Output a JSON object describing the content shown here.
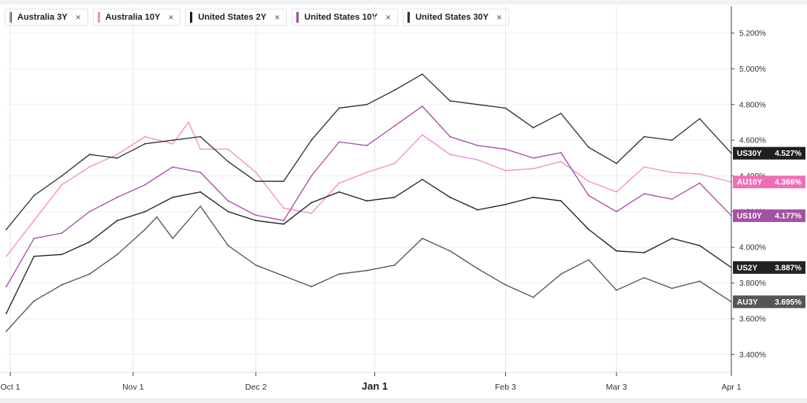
{
  "legend": [
    {
      "label": "Australia 3Y",
      "color": "#555555"
    },
    {
      "label": "Australia 10Y",
      "color": "#f28fc9"
    },
    {
      "label": "United States 2Y",
      "color": "#222222"
    },
    {
      "label": "United States 10Y",
      "color": "#a352a3"
    },
    {
      "label": "United States 30Y",
      "color": "#333333"
    }
  ],
  "close_glyph": "×",
  "chart_data": {
    "type": "line",
    "x_axis": {
      "range": [
        "2024-09-30",
        "2025-04-01"
      ],
      "ticks": [
        {
          "date": "2024-10-01",
          "label": "Oct 1"
        },
        {
          "date": "2024-11-01",
          "label": "Nov 1"
        },
        {
          "date": "2024-12-02",
          "label": "Dec 2"
        },
        {
          "date": "2025-01-01",
          "label": "Jan 1"
        },
        {
          "date": "2025-02-03",
          "label": "Feb 3"
        },
        {
          "date": "2025-03-03",
          "label": "Mar 3"
        },
        {
          "date": "2025-04-01",
          "label": "Apr 1"
        }
      ]
    },
    "y_axis": {
      "range": [
        3.3,
        5.35
      ],
      "ticks": [
        3.4,
        3.6,
        3.8,
        4.0,
        4.2,
        4.4,
        4.6,
        4.8,
        5.0,
        5.2
      ],
      "tick_labels": [
        "3.400%",
        "3.600%",
        "3.800%",
        "4.000%",
        "4.200%",
        "4.400%",
        "4.600%",
        "4.800%",
        "5.000%",
        "5.200%"
      ],
      "position": "right",
      "grid": true
    },
    "series": [
      {
        "name": "Australia 3Y",
        "tag": "AU3Y",
        "last_label": "3.695%",
        "color": "#555555",
        "tag_color": "#555555",
        "points": [
          [
            "2024-09-30",
            3.53
          ],
          [
            "2024-10-07",
            3.7
          ],
          [
            "2024-10-14",
            3.79
          ],
          [
            "2024-10-21",
            3.85
          ],
          [
            "2024-10-28",
            3.96
          ],
          [
            "2024-11-04",
            4.1
          ],
          [
            "2024-11-07",
            4.17
          ],
          [
            "2024-11-11",
            4.05
          ],
          [
            "2024-11-18",
            4.23
          ],
          [
            "2024-11-25",
            4.01
          ],
          [
            "2024-12-02",
            3.9
          ],
          [
            "2024-12-09",
            3.84
          ],
          [
            "2024-12-16",
            3.78
          ],
          [
            "2024-12-23",
            3.85
          ],
          [
            "2024-12-30",
            3.87
          ],
          [
            "2025-01-06",
            3.9
          ],
          [
            "2025-01-13",
            4.05
          ],
          [
            "2025-01-20",
            3.98
          ],
          [
            "2025-01-27",
            3.88
          ],
          [
            "2025-02-03",
            3.79
          ],
          [
            "2025-02-10",
            3.72
          ],
          [
            "2025-02-17",
            3.85
          ],
          [
            "2025-02-24",
            3.93
          ],
          [
            "2025-03-03",
            3.76
          ],
          [
            "2025-03-10",
            3.83
          ],
          [
            "2025-03-17",
            3.77
          ],
          [
            "2025-03-24",
            3.81
          ],
          [
            "2025-04-01",
            3.695
          ]
        ]
      },
      {
        "name": "Australia 10Y",
        "tag": "AU10Y",
        "last_label": "4.366%",
        "color": "#f28fc9",
        "tag_color": "#ef6fb5",
        "points": [
          [
            "2024-09-30",
            3.95
          ],
          [
            "2024-10-07",
            4.15
          ],
          [
            "2024-10-14",
            4.35
          ],
          [
            "2024-10-21",
            4.45
          ],
          [
            "2024-10-28",
            4.52
          ],
          [
            "2024-11-04",
            4.62
          ],
          [
            "2024-11-11",
            4.58
          ],
          [
            "2024-11-15",
            4.7
          ],
          [
            "2024-11-18",
            4.55
          ],
          [
            "2024-11-25",
            4.55
          ],
          [
            "2024-12-02",
            4.42
          ],
          [
            "2024-12-09",
            4.22
          ],
          [
            "2024-12-16",
            4.19
          ],
          [
            "2024-12-23",
            4.36
          ],
          [
            "2024-12-30",
            4.42
          ],
          [
            "2025-01-06",
            4.47
          ],
          [
            "2025-01-13",
            4.63
          ],
          [
            "2025-01-20",
            4.52
          ],
          [
            "2025-01-27",
            4.49
          ],
          [
            "2025-02-03",
            4.43
          ],
          [
            "2025-02-10",
            4.44
          ],
          [
            "2025-02-17",
            4.48
          ],
          [
            "2025-02-24",
            4.37
          ],
          [
            "2025-03-03",
            4.31
          ],
          [
            "2025-03-10",
            4.45
          ],
          [
            "2025-03-17",
            4.42
          ],
          [
            "2025-03-24",
            4.41
          ],
          [
            "2025-04-01",
            4.366
          ]
        ]
      },
      {
        "name": "United States 2Y",
        "tag": "US2Y",
        "last_label": "3.887%",
        "color": "#222222",
        "tag_color": "#222222",
        "points": [
          [
            "2024-09-30",
            3.63
          ],
          [
            "2024-10-07",
            3.95
          ],
          [
            "2024-10-14",
            3.96
          ],
          [
            "2024-10-21",
            4.03
          ],
          [
            "2024-10-28",
            4.15
          ],
          [
            "2024-11-04",
            4.2
          ],
          [
            "2024-11-11",
            4.28
          ],
          [
            "2024-11-18",
            4.31
          ],
          [
            "2024-11-25",
            4.2
          ],
          [
            "2024-12-02",
            4.15
          ],
          [
            "2024-12-09",
            4.13
          ],
          [
            "2024-12-16",
            4.25
          ],
          [
            "2024-12-23",
            4.31
          ],
          [
            "2024-12-30",
            4.26
          ],
          [
            "2025-01-06",
            4.28
          ],
          [
            "2025-01-13",
            4.38
          ],
          [
            "2025-01-20",
            4.28
          ],
          [
            "2025-01-27",
            4.21
          ],
          [
            "2025-02-03",
            4.24
          ],
          [
            "2025-02-10",
            4.28
          ],
          [
            "2025-02-17",
            4.26
          ],
          [
            "2025-02-24",
            4.1
          ],
          [
            "2025-03-03",
            3.98
          ],
          [
            "2025-03-10",
            3.97
          ],
          [
            "2025-03-17",
            4.05
          ],
          [
            "2025-03-24",
            4.01
          ],
          [
            "2025-04-01",
            3.887
          ]
        ]
      },
      {
        "name": "United States 10Y",
        "tag": "US10Y",
        "last_label": "4.177%",
        "color": "#a352a3",
        "tag_color": "#a352a3",
        "points": [
          [
            "2024-09-30",
            3.78
          ],
          [
            "2024-10-07",
            4.05
          ],
          [
            "2024-10-14",
            4.08
          ],
          [
            "2024-10-21",
            4.2
          ],
          [
            "2024-10-28",
            4.28
          ],
          [
            "2024-11-04",
            4.35
          ],
          [
            "2024-11-11",
            4.45
          ],
          [
            "2024-11-18",
            4.42
          ],
          [
            "2024-11-25",
            4.26
          ],
          [
            "2024-12-02",
            4.18
          ],
          [
            "2024-12-09",
            4.15
          ],
          [
            "2024-12-16",
            4.4
          ],
          [
            "2024-12-23",
            4.59
          ],
          [
            "2024-12-30",
            4.57
          ],
          [
            "2025-01-06",
            4.68
          ],
          [
            "2025-01-13",
            4.79
          ],
          [
            "2025-01-20",
            4.62
          ],
          [
            "2025-01-27",
            4.57
          ],
          [
            "2025-02-03",
            4.55
          ],
          [
            "2025-02-10",
            4.5
          ],
          [
            "2025-02-17",
            4.53
          ],
          [
            "2025-02-24",
            4.29
          ],
          [
            "2025-03-03",
            4.2
          ],
          [
            "2025-03-10",
            4.3
          ],
          [
            "2025-03-17",
            4.27
          ],
          [
            "2025-03-24",
            4.36
          ],
          [
            "2025-04-01",
            4.177
          ]
        ]
      },
      {
        "name": "United States 30Y",
        "tag": "US30Y",
        "last_label": "4.527%",
        "color": "#333333",
        "tag_color": "#1f1f1f",
        "points": [
          [
            "2024-09-30",
            4.1
          ],
          [
            "2024-10-07",
            4.29
          ],
          [
            "2024-10-14",
            4.4
          ],
          [
            "2024-10-21",
            4.52
          ],
          [
            "2024-10-28",
            4.5
          ],
          [
            "2024-11-04",
            4.58
          ],
          [
            "2024-11-11",
            4.6
          ],
          [
            "2024-11-18",
            4.62
          ],
          [
            "2024-11-25",
            4.48
          ],
          [
            "2024-12-02",
            4.37
          ],
          [
            "2024-12-09",
            4.37
          ],
          [
            "2024-12-16",
            4.6
          ],
          [
            "2024-12-23",
            4.78
          ],
          [
            "2024-12-30",
            4.8
          ],
          [
            "2025-01-06",
            4.88
          ],
          [
            "2025-01-13",
            4.97
          ],
          [
            "2025-01-20",
            4.82
          ],
          [
            "2025-01-27",
            4.8
          ],
          [
            "2025-02-03",
            4.78
          ],
          [
            "2025-02-10",
            4.67
          ],
          [
            "2025-02-17",
            4.75
          ],
          [
            "2025-02-24",
            4.56
          ],
          [
            "2025-03-03",
            4.47
          ],
          [
            "2025-03-10",
            4.62
          ],
          [
            "2025-03-17",
            4.6
          ],
          [
            "2025-03-24",
            4.72
          ],
          [
            "2025-04-01",
            4.527
          ]
        ]
      }
    ]
  }
}
